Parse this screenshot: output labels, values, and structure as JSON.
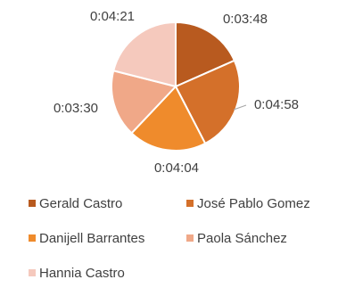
{
  "chart_data": {
    "type": "pie",
    "title": "",
    "categories": [
      "Gerald Castro",
      "José Pablo Gomez",
      "Danijell Barrantes",
      "Paola Sánchez",
      "Hannia Castro"
    ],
    "labels": [
      "0:03:48",
      "0:04:58",
      "0:04:04",
      "0:03:30",
      "0:04:21"
    ],
    "values": [
      228,
      298,
      244,
      210,
      261
    ],
    "colors": [
      "#b85a1f",
      "#d4702a",
      "#ef8b2c",
      "#f0a888",
      "#f5c9bd"
    ],
    "legend_position": "bottom"
  }
}
